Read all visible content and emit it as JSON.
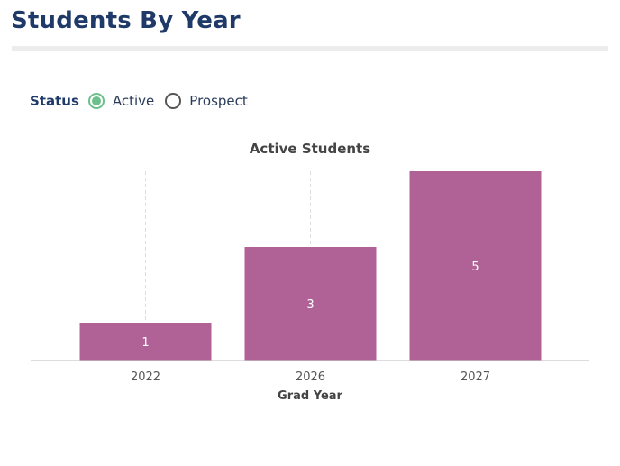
{
  "page": {
    "title": "Students By Year"
  },
  "filter": {
    "label": "Status",
    "options": [
      {
        "label": "Active",
        "selected": true
      },
      {
        "label": "Prospect",
        "selected": false
      }
    ],
    "accent_color": "#6cc08b"
  },
  "chart_data": {
    "type": "bar",
    "title": "Active Students",
    "xlabel": "Grad Year",
    "ylabel": "",
    "categories": [
      "2022",
      "2026",
      "2027"
    ],
    "values": [
      1,
      3,
      5
    ],
    "ylim": [
      0,
      5
    ],
    "bar_color": "#b06196",
    "data_labels": true,
    "grid": "vertical-dashed",
    "legend": "none"
  }
}
